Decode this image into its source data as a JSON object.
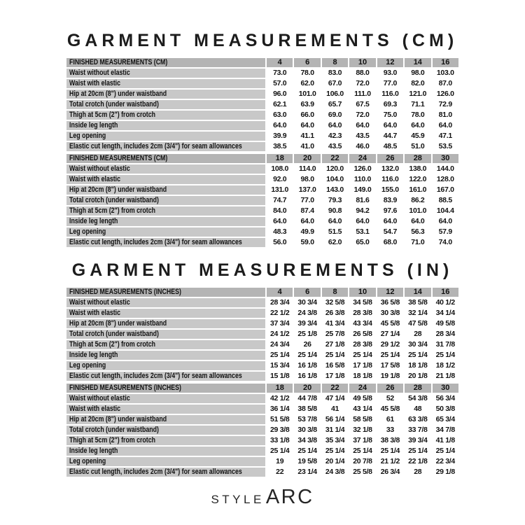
{
  "sections": [
    {
      "title": "GARMENT MEASUREMENTS (CM)",
      "tables": [
        {
          "header": "FINISHED MEASUREMENTS (CM)",
          "sizes": [
            "4",
            "6",
            "8",
            "10",
            "12",
            "14",
            "16"
          ],
          "rows": [
            {
              "label": "Waist without elastic",
              "values": [
                "73.0",
                "78.0",
                "83.0",
                "88.0",
                "93.0",
                "98.0",
                "103.0"
              ]
            },
            {
              "label": "Waist with elastic",
              "values": [
                "57.0",
                "62.0",
                "67.0",
                "72.0",
                "77.0",
                "82.0",
                "87.0"
              ]
            },
            {
              "label": "Hip at 20cm (8\") under waistband",
              "values": [
                "96.0",
                "101.0",
                "106.0",
                "111.0",
                "116.0",
                "121.0",
                "126.0"
              ]
            },
            {
              "label": "Total crotch (under waistband)",
              "values": [
                "62.1",
                "63.9",
                "65.7",
                "67.5",
                "69.3",
                "71.1",
                "72.9"
              ]
            },
            {
              "label": "Thigh at 5cm (2\") from crotch",
              "values": [
                "63.0",
                "66.0",
                "69.0",
                "72.0",
                "75.0",
                "78.0",
                "81.0"
              ]
            },
            {
              "label": "Inside leg length",
              "values": [
                "64.0",
                "64.0",
                "64.0",
                "64.0",
                "64.0",
                "64.0",
                "64.0"
              ]
            },
            {
              "label": "Leg opening",
              "values": [
                "39.9",
                "41.1",
                "42.3",
                "43.5",
                "44.7",
                "45.9",
                "47.1"
              ]
            },
            {
              "label": "Elastic cut length, includes 2cm (3/4\") for seam allowances",
              "values": [
                "38.5",
                "41.0",
                "43.5",
                "46.0",
                "48.5",
                "51.0",
                "53.5"
              ]
            }
          ]
        },
        {
          "header": "FINISHED MEASUREMENTS (CM)",
          "sizes": [
            "18",
            "20",
            "22",
            "24",
            "26",
            "28",
            "30"
          ],
          "rows": [
            {
              "label": "Waist without elastic",
              "values": [
                "108.0",
                "114.0",
                "120.0",
                "126.0",
                "132.0",
                "138.0",
                "144.0"
              ]
            },
            {
              "label": "Waist with elastic",
              "values": [
                "92.0",
                "98.0",
                "104.0",
                "110.0",
                "116.0",
                "122.0",
                "128.0"
              ]
            },
            {
              "label": "Hip at 20cm (8\") under waistband",
              "values": [
                "131.0",
                "137.0",
                "143.0",
                "149.0",
                "155.0",
                "161.0",
                "167.0"
              ]
            },
            {
              "label": "Total crotch (under waistband)",
              "values": [
                "74.7",
                "77.0",
                "79.3",
                "81.6",
                "83.9",
                "86.2",
                "88.5"
              ]
            },
            {
              "label": "Thigh at 5cm (2\") from crotch",
              "values": [
                "84.0",
                "87.4",
                "90.8",
                "94.2",
                "97.6",
                "101.0",
                "104.4"
              ]
            },
            {
              "label": "Inside leg length",
              "values": [
                "64.0",
                "64.0",
                "64.0",
                "64.0",
                "64.0",
                "64.0",
                "64.0"
              ]
            },
            {
              "label": "Leg opening",
              "values": [
                "48.3",
                "49.9",
                "51.5",
                "53.1",
                "54.7",
                "56.3",
                "57.9"
              ]
            },
            {
              "label": "Elastic cut length, includes 2cm (3/4\") for seam allowances",
              "values": [
                "56.0",
                "59.0",
                "62.0",
                "65.0",
                "68.0",
                "71.0",
                "74.0"
              ]
            }
          ]
        }
      ]
    },
    {
      "title": "GARMENT MEASUREMENTS (IN)",
      "tables": [
        {
          "header": "FINISHED MEASUREMENTS (INCHES)",
          "sizes": [
            "4",
            "6",
            "8",
            "10",
            "12",
            "14",
            "16"
          ],
          "rows": [
            {
              "label": "Waist without elastic",
              "values": [
                "28 3/4",
                "30 3/4",
                "32 5/8",
                "34 5/8",
                "36 5/8",
                "38 5/8",
                "40 1/2"
              ]
            },
            {
              "label": "Waist with elastic",
              "values": [
                "22 1/2",
                "24 3/8",
                "26 3/8",
                "28 3/8",
                "30 3/8",
                "32 1/4",
                "34 1/4"
              ]
            },
            {
              "label": "Hip at 20cm (8\") under waistband",
              "values": [
                "37 3/4",
                "39 3/4",
                "41 3/4",
                "43 3/4",
                "45 5/8",
                "47 5/8",
                "49 5/8"
              ]
            },
            {
              "label": "Total crotch (under waistband)",
              "values": [
                "24 1/2",
                "25 1/8",
                "25 7/8",
                "26 5/8",
                "27 1/4",
                "28",
                "28 3/4"
              ]
            },
            {
              "label": "Thigh at 5cm (2\") from crotch",
              "values": [
                "24 3/4",
                "26",
                "27 1/8",
                "28 3/8",
                "29 1/2",
                "30 3/4",
                "31 7/8"
              ]
            },
            {
              "label": "Inside leg length",
              "values": [
                "25 1/4",
                "25 1/4",
                "25 1/4",
                "25 1/4",
                "25 1/4",
                "25 1/4",
                "25 1/4"
              ]
            },
            {
              "label": "Leg opening",
              "values": [
                "15 3/4",
                "16 1/8",
                "16 5/8",
                "17 1/8",
                "17 5/8",
                "18 1/8",
                "18 1/2"
              ]
            },
            {
              "label": "Elastic cut length, includes 2cm (3/4\") for seam allowances",
              "values": [
                "15 1/8",
                "16 1/8",
                "17 1/8",
                "18 1/8",
                "19 1/8",
                "20 1/8",
                "21 1/8"
              ]
            }
          ]
        },
        {
          "header": "FINISHED MEASUREMENTS (INCHES)",
          "sizes": [
            "18",
            "20",
            "22",
            "24",
            "26",
            "28",
            "30"
          ],
          "rows": [
            {
              "label": "Waist without elastic",
              "values": [
                "42 1/2",
                "44 7/8",
                "47 1/4",
                "49 5/8",
                "52",
                "54 3/8",
                "56 3/4"
              ]
            },
            {
              "label": "Waist with elastic",
              "values": [
                "36 1/4",
                "38 5/8",
                "41",
                "43 1/4",
                "45 5/8",
                "48",
                "50 3/8"
              ]
            },
            {
              "label": "Hip at 20cm (8\") under waistband",
              "values": [
                "51 5/8",
                "53 7/8",
                "56 1/4",
                "58 5/8",
                "61",
                "63 3/8",
                "65 3/4"
              ]
            },
            {
              "label": "Total crotch (under waistband)",
              "values": [
                "29 3/8",
                "30 3/8",
                "31 1/4",
                "32 1/8",
                "33",
                "33 7/8",
                "34 7/8"
              ]
            },
            {
              "label": "Thigh at 5cm (2\") from crotch",
              "values": [
                "33 1/8",
                "34 3/8",
                "35 3/4",
                "37 1/8",
                "38 3/8",
                "39 3/4",
                "41 1/8"
              ]
            },
            {
              "label": "Inside leg length",
              "values": [
                "25 1/4",
                "25 1/4",
                "25 1/4",
                "25 1/4",
                "25 1/4",
                "25 1/4",
                "25 1/4"
              ]
            },
            {
              "label": "Leg opening",
              "values": [
                "19",
                "19 5/8",
                "20 1/4",
                "20 7/8",
                "21 1/2",
                "22 1/8",
                "22 3/4"
              ]
            },
            {
              "label": "Elastic cut length, includes 2cm (3/4\") for seam allowances",
              "values": [
                "22",
                "23 1/4",
                "24 3/8",
                "25 5/8",
                "26 3/4",
                "28",
                "29 1/8"
              ]
            }
          ]
        }
      ]
    }
  ],
  "logo": {
    "brand_prefix": "STYLE",
    "brand_suffix": "ARC"
  }
}
